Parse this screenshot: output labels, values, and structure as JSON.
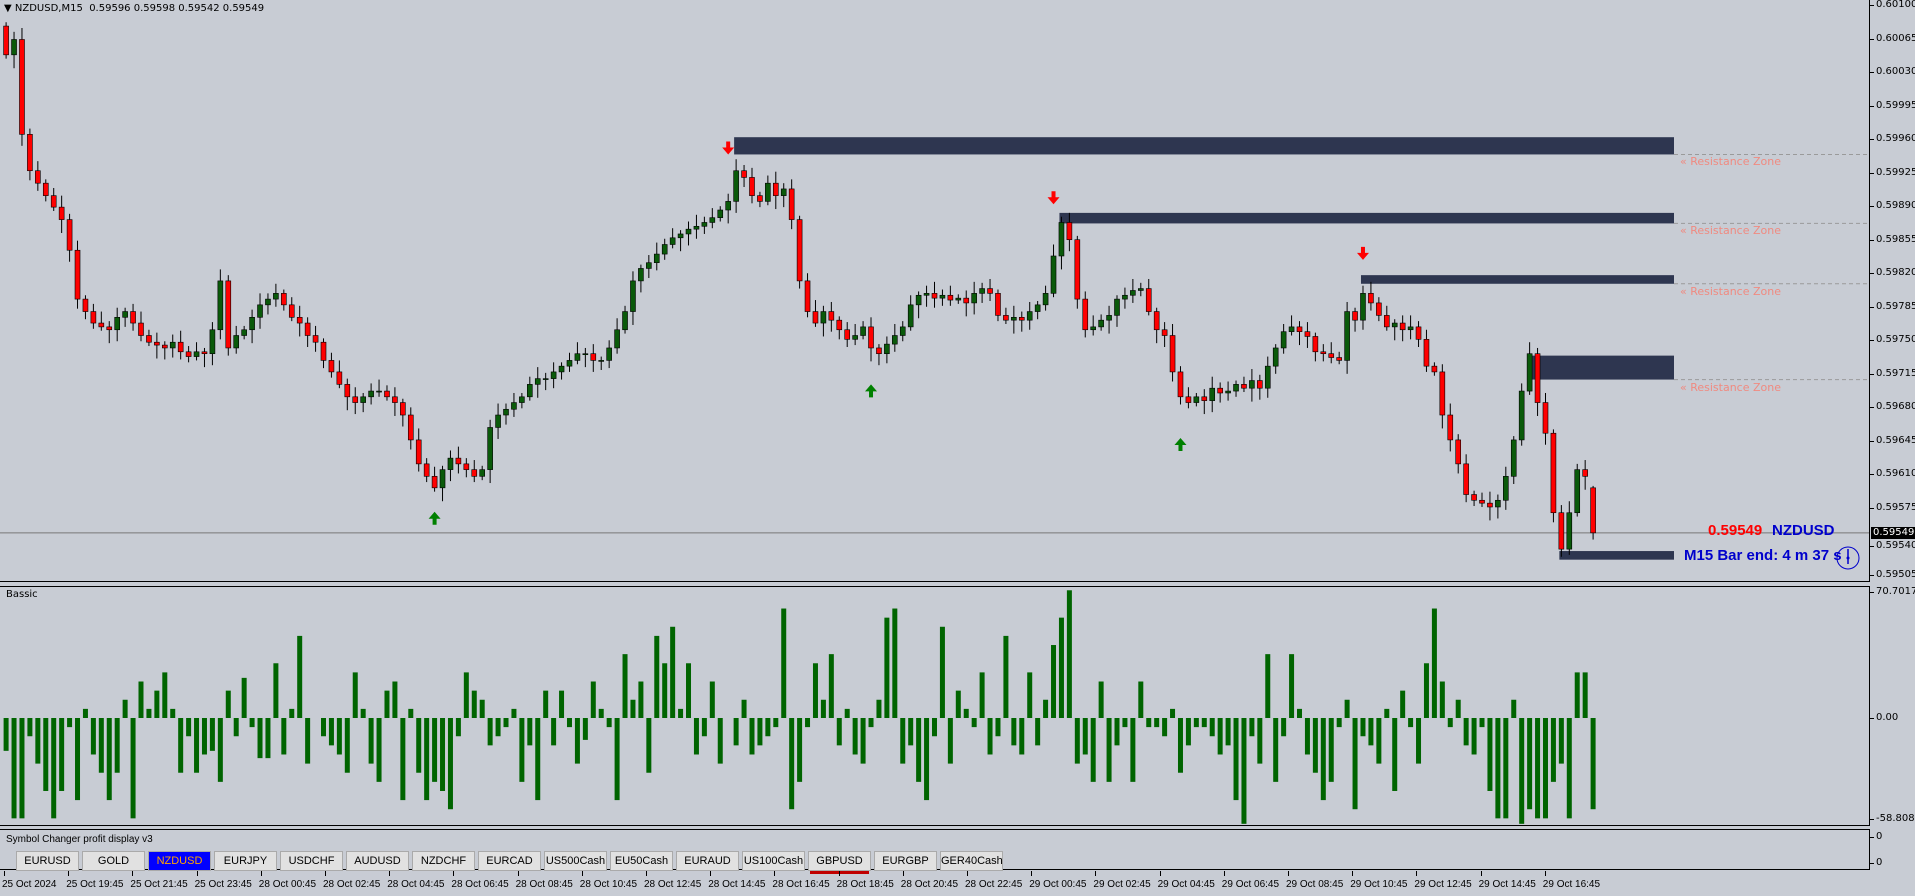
{
  "header": {
    "symbol_tf": "NZDUSD,M15",
    "ohlc": "0.59596 0.59598 0.59542 0.59549",
    "menu_icon": "triangle-down-icon"
  },
  "price_axis": {
    "ticks": [
      "0.60100",
      "0.60065",
      "0.60030",
      "0.59995",
      "0.59960",
      "0.59925",
      "0.59890",
      "0.59855",
      "0.59820",
      "0.59785",
      "0.59750",
      "0.59715",
      "0.59680",
      "0.59645",
      "0.59610",
      "0.59575",
      "0.59540",
      "0.59505"
    ],
    "current": "0.59549"
  },
  "info": {
    "price": "0.59549",
    "symbol": "NZDUSD",
    "bar_end": "M15 Bar end: 4 m 37 s",
    "clock_icon": "clock-icon",
    "price_color": "#ff0000",
    "text_color": "#0000cc"
  },
  "zones": {
    "label": "« Resistance Zone",
    "color": "#2e3650",
    "label_color": "#f08a80",
    "items": [
      {
        "start_bar": 92,
        "top": 0.59962,
        "bottom": 0.59944,
        "label": true
      },
      {
        "start_bar": 133,
        "top": 0.59883,
        "bottom": 0.59872,
        "label": true
      },
      {
        "start_bar": 171,
        "top": 0.59818,
        "bottom": 0.59809,
        "label": true
      },
      {
        "start_bar": 192,
        "top": 0.59734,
        "bottom": 0.59709,
        "label": true
      },
      {
        "start_bar": 196,
        "top": 0.5953,
        "bottom": 0.59521,
        "label": false
      }
    ]
  },
  "signals": {
    "sell": [
      {
        "bar": 91,
        "price": 0.59945
      },
      {
        "bar": 132,
        "price": 0.59893
      },
      {
        "bar": 171,
        "price": 0.59835
      }
    ],
    "buy": [
      {
        "bar": 54,
        "price": 0.5957
      },
      {
        "bar": 109,
        "price": 0.59703
      },
      {
        "bar": 148,
        "price": 0.59647
      }
    ],
    "sell_color": "#ff0000",
    "buy_color": "#008000"
  },
  "indicator": {
    "name": "Bassic",
    "max": "70.7017",
    "zero": "0.00",
    "min": "-58.8089",
    "color": "#006400"
  },
  "symbol_changer": {
    "title": "Symbol Changer profit display v3",
    "axis": [
      "0",
      "0"
    ],
    "buttons": [
      "EURUSD",
      "GOLD",
      "NZDUSD",
      "EURJPY",
      "USDCHF",
      "AUDUSD",
      "NZDCHF",
      "EURCAD",
      "US500Cash",
      "EU50Cash",
      "EURAUD",
      "US100Cash",
      "GBPUSD",
      "EURGBP",
      "GER40Cash"
    ],
    "active": "NZDUSD",
    "marked": "GBPUSD"
  },
  "time_axis": [
    "25 Oct 2024",
    "25 Oct 19:45",
    "25 Oct 21:45",
    "25 Oct 23:45",
    "28 Oct 00:45",
    "28 Oct 02:45",
    "28 Oct 04:45",
    "28 Oct 06:45",
    "28 Oct 08:45",
    "28 Oct 10:45",
    "28 Oct 12:45",
    "28 Oct 14:45",
    "28 Oct 16:45",
    "28 Oct 18:45",
    "28 Oct 20:45",
    "28 Oct 22:45",
    "29 Oct 00:45",
    "29 Oct 02:45",
    "29 Oct 04:45",
    "29 Oct 06:45",
    "29 Oct 08:45",
    "29 Oct 10:45",
    "29 Oct 12:45",
    "29 Oct 14:45",
    "29 Oct 16:45"
  ],
  "chart_data": [
    {
      "type": "candlestick",
      "symbol": "NZDUSD",
      "timeframe": "M15",
      "ylim": [
        0.59505,
        0.601
      ],
      "bull_color": "#0a5a0a",
      "bear_color": "#ff0000",
      "last_bar": {
        "open": 0.59596,
        "high": 0.59598,
        "low": 0.59542,
        "close": 0.59549
      },
      "close": [
        0.60048,
        0.60064,
        0.59965,
        0.59927,
        0.59914,
        0.59901,
        0.59889,
        0.59876,
        0.59844,
        0.59793,
        0.5978,
        0.59768,
        0.59764,
        0.59761,
        0.59774,
        0.5978,
        0.59768,
        0.59755,
        0.59748,
        0.59745,
        0.59742,
        0.59748,
        0.59738,
        0.59733,
        0.59738,
        0.59736,
        0.59761,
        0.59812,
        0.59742,
        0.59755,
        0.59761,
        0.59774,
        0.59787,
        0.59793,
        0.59799,
        0.59787,
        0.59774,
        0.59768,
        0.59755,
        0.59748,
        0.59729,
        0.59717,
        0.59704,
        0.59691,
        0.59685,
        0.59691,
        0.59697,
        0.59697,
        0.59691,
        0.59685,
        0.59672,
        0.59646,
        0.59621,
        0.59608,
        0.59596,
        0.59615,
        0.59627,
        0.59621,
        0.59615,
        0.59608,
        0.59615,
        0.59659,
        0.59672,
        0.59678,
        0.59685,
        0.59691,
        0.59704,
        0.5971,
        0.5971,
        0.59717,
        0.59723,
        0.59729,
        0.59736,
        0.59736,
        0.59729,
        0.59729,
        0.59742,
        0.59761,
        0.5978,
        0.59812,
        0.59825,
        0.59831,
        0.5984,
        0.5985,
        0.59857,
        0.59861,
        0.59866,
        0.59869,
        0.59873,
        0.59878,
        0.59886,
        0.59895,
        0.59927,
        0.5992,
        0.59901,
        0.59895,
        0.59914,
        0.59901,
        0.59908,
        0.59876,
        0.59812,
        0.5978,
        0.59768,
        0.5978,
        0.59771,
        0.59761,
        0.59751,
        0.59755,
        0.59764,
        0.59742,
        0.59736,
        0.59746,
        0.59755,
        0.59764,
        0.59787,
        0.59797,
        0.59799,
        0.59794,
        0.59797,
        0.59792,
        0.59794,
        0.59789,
        0.59799,
        0.59804,
        0.59799,
        0.59776,
        0.59771,
        0.59774,
        0.59771,
        0.5978,
        0.59787,
        0.59799,
        0.59838,
        0.59873,
        0.59855,
        0.59793,
        0.59761,
        0.59764,
        0.59771,
        0.59776,
        0.59793,
        0.59797,
        0.59802,
        0.59804,
        0.5978,
        0.59761,
        0.59755,
        0.59717,
        0.59691,
        0.59685,
        0.59691,
        0.59687,
        0.597,
        0.59695,
        0.59697,
        0.59704,
        0.597,
        0.59708,
        0.597,
        0.59723,
        0.59742,
        0.59759,
        0.59764,
        0.59759,
        0.59754,
        0.59738,
        0.59736,
        0.59732,
        0.59729,
        0.5978,
        0.59771,
        0.59799,
        0.59789,
        0.59776,
        0.59764,
        0.59768,
        0.59761,
        0.59764,
        0.59751,
        0.59723,
        0.59717,
        0.59672,
        0.59646,
        0.59621,
        0.59589,
        0.59583,
        0.5958,
        0.59576,
        0.59583,
        0.59608,
        0.59646,
        0.59697,
        0.59736,
        0.59685,
        0.59653,
        0.5957,
        0.59532,
        0.5957,
        0.59615,
        0.59608,
        0.59549
      ]
    },
    {
      "type": "bar",
      "name": "Bassic",
      "ylim": [
        -58.8089,
        70.7017
      ],
      "values": [
        -18,
        -55,
        -55,
        -10,
        -25,
        -40,
        -55,
        -40,
        -5,
        -45,
        5,
        -20,
        -30,
        -45,
        -30,
        10,
        -55,
        20,
        5,
        15,
        25,
        5,
        -30,
        -10,
        -30,
        -20,
        -18,
        -35,
        15,
        -10,
        22,
        -5,
        -22,
        -22,
        30,
        -20,
        5,
        45,
        -25,
        0,
        -10,
        -15,
        -20,
        -30,
        25,
        5,
        -25,
        -35,
        15,
        20,
        -45,
        5,
        -30,
        -45,
        -35,
        -40,
        -50,
        -10,
        25,
        15,
        10,
        -15,
        -10,
        -5,
        5,
        -35,
        -15,
        -45,
        15,
        -15,
        15,
        -5,
        -25,
        -12,
        20,
        5,
        -5,
        -45,
        35,
        10,
        20,
        -30,
        45,
        30,
        50,
        5,
        30,
        -20,
        -10,
        20,
        -25,
        0,
        -15,
        10,
        -20,
        -15,
        -10,
        -5,
        60,
        -50,
        -35,
        -5,
        30,
        10,
        35,
        -15,
        5,
        -20,
        -25,
        -5,
        10,
        55,
        60,
        -25,
        -15,
        -35,
        -45,
        -10,
        50,
        -25,
        15,
        5,
        -5,
        25,
        -20,
        -10,
        45,
        -15,
        -20,
        25,
        -15,
        10,
        40,
        55,
        70,
        -25,
        -20,
        -35,
        20,
        -35,
        -15,
        -5,
        -35,
        20,
        -5,
        -5,
        -10,
        5,
        -30,
        -15,
        -5,
        -5,
        -10,
        -20,
        -15,
        -45,
        -58,
        -10,
        -25,
        35,
        -35,
        -10,
        35,
        5,
        -20,
        -30,
        -45,
        -35,
        -5,
        10,
        -50,
        -10,
        -15,
        -25,
        5,
        -40,
        15,
        -5,
        -25,
        30,
        60,
        20,
        -5,
        10,
        -15,
        -20,
        -5,
        -40,
        -55,
        -55,
        10,
        -58,
        -50,
        -55,
        -55,
        -35,
        -25,
        -55,
        25,
        25,
        -50
      ]
    }
  ]
}
